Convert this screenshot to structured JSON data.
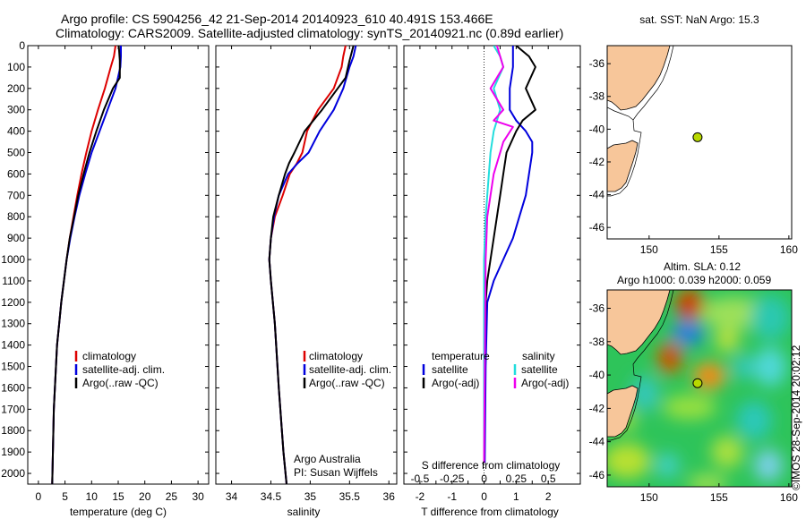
{
  "title": {
    "line1": "Argo profile: CS 5904256_42 21-Sep-2014 20140923_610 40.491S 153.466E",
    "line2": "Climatology: CARS2009. Satellite-adjusted climatology: synTS_20140921.nc (0.89d earlier)"
  },
  "colors": {
    "climatology": "#dd0000",
    "satellite": "#0000dd",
    "argo": "#000000",
    "sal_satellite": "#22dddd",
    "sal_argo": "#ee00ee",
    "land": "#f7c69a",
    "marker": "#b8d800"
  },
  "legend_left": {
    "climatology": "climatology",
    "satellite": "satellite-adj. clim.",
    "argo": "Argo(..raw -QC)"
  },
  "legend_diff": {
    "temperature": "temperature",
    "salinity": "salinity",
    "satellite": "satellite",
    "argo": "Argo(-adj)"
  },
  "credit": {
    "line1": "Argo Australia",
    "line2": "PI: Susan Wijffels"
  },
  "map_top": {
    "title": "sat. SST: NaN Argo: 15.3"
  },
  "map_bottom": {
    "title1": "Altim. SLA: 0.12",
    "title2": "Argo h1000: 0.039 h2000: 0.059"
  },
  "footer": "©IMOS 28-Sep-2014 20:02:12",
  "chart_data": [
    {
      "type": "line",
      "xlabel": "temperature (deg C)",
      "ylabel": "",
      "xlim": [
        -2,
        32
      ],
      "ylim": [
        2050,
        0
      ],
      "xticks": [
        0,
        5,
        10,
        15,
        20,
        25,
        30
      ],
      "yticks": [
        0,
        100,
        200,
        300,
        400,
        500,
        600,
        700,
        800,
        900,
        1000,
        1100,
        1200,
        1300,
        1400,
        1500,
        1600,
        1700,
        1800,
        1900,
        2000
      ],
      "series": [
        {
          "name": "climatology",
          "key": "climatology",
          "x": [
            14.5,
            14.2,
            13.6,
            12.5,
            11.2,
            10.0,
            9.0,
            8.1,
            7.3,
            6.6,
            5.9,
            5.3,
            4.8,
            4.3,
            3.9,
            3.5,
            3.2,
            2.9,
            2.6
          ],
          "y": [
            0,
            50,
            100,
            200,
            300,
            400,
            500,
            600,
            700,
            800,
            900,
            1000,
            1100,
            1200,
            1300,
            1400,
            1550,
            1700,
            2050
          ]
        },
        {
          "name": "satellite-adj. clim.",
          "key": "satellite",
          "x": [
            15.5,
            15.5,
            15.4,
            14.5,
            13.0,
            11.5,
            10.0,
            8.8,
            7.7,
            6.8,
            6.0,
            5.3,
            4.8,
            4.3,
            3.9,
            3.5,
            3.2,
            2.9,
            2.6
          ],
          "y": [
            0,
            50,
            100,
            200,
            300,
            400,
            500,
            600,
            700,
            800,
            900,
            1000,
            1100,
            1200,
            1300,
            1400,
            1550,
            1700,
            2050
          ]
        },
        {
          "name": "Argo(..raw -QC)",
          "key": "argo",
          "x": [
            15.1,
            15.3,
            15.3,
            14.0,
            12.3,
            10.9,
            9.6,
            8.5,
            7.5,
            6.7,
            5.9,
            5.3,
            4.8,
            4.3,
            3.9,
            3.5,
            3.2,
            2.9,
            2.6
          ],
          "y": [
            0,
            70,
            150,
            200,
            300,
            400,
            500,
            600,
            700,
            800,
            900,
            1000,
            1100,
            1200,
            1300,
            1400,
            1550,
            1700,
            2050
          ]
        }
      ]
    },
    {
      "type": "line",
      "xlabel": "salinity",
      "ylabel": "",
      "xlim": [
        33.8,
        36.1
      ],
      "ylim": [
        2050,
        0
      ],
      "xticks": [
        34,
        34.5,
        35,
        35.5,
        36
      ],
      "series": [
        {
          "name": "climatology",
          "key": "climatology",
          "x": [
            35.45,
            35.42,
            35.4,
            35.3,
            35.1,
            34.96,
            34.9,
            34.83,
            34.74,
            34.65,
            34.55,
            34.5,
            34.48,
            34.5,
            34.55,
            34.6,
            34.66,
            34.7
          ],
          "y": [
            0,
            50,
            100,
            200,
            300,
            400,
            500,
            550,
            600,
            700,
            800,
            900,
            1000,
            1100,
            1300,
            1600,
            1900,
            2050
          ]
        },
        {
          "name": "satellite-adj. clim.",
          "key": "satellite",
          "x": [
            35.58,
            35.55,
            35.5,
            35.42,
            35.3,
            35.12,
            34.98,
            34.84,
            34.72,
            34.6,
            34.54,
            34.5,
            34.48,
            34.5,
            34.55,
            34.6,
            34.66,
            34.7
          ],
          "y": [
            0,
            50,
            100,
            200,
            300,
            400,
            500,
            550,
            600,
            700,
            800,
            900,
            1000,
            1100,
            1300,
            1600,
            1900,
            2050
          ]
        },
        {
          "name": "Argo(..raw -QC)",
          "key": "argo",
          "x": [
            35.55,
            35.5,
            35.45,
            35.35,
            35.15,
            34.93,
            34.8,
            34.73,
            34.68,
            34.6,
            34.53,
            34.5,
            34.48,
            34.5,
            34.55,
            34.6,
            34.66,
            34.7
          ],
          "y": [
            0,
            70,
            150,
            200,
            300,
            400,
            500,
            550,
            600,
            700,
            800,
            900,
            1000,
            1100,
            1300,
            1600,
            1900,
            2050
          ]
        }
      ]
    },
    {
      "type": "line",
      "xlabel": "T difference from climatology",
      "x2label": "S difference from climatology",
      "xlim": [
        -2.5,
        3.0
      ],
      "ylim": [
        2050,
        0
      ],
      "xticks": [
        -2,
        -1.5,
        -1,
        -0.5,
        0,
        0.5,
        1,
        1.5,
        2
      ],
      "xticklabels": [
        "-2",
        "",
        "-1",
        "",
        "0",
        "",
        "1",
        "",
        "2"
      ],
      "x2ticks": [
        -0.5,
        -0.25,
        0,
        0.25,
        0.5
      ],
      "x2ticklabels": [
        "-0.5",
        "-0.25",
        "0",
        "0.25",
        "0.5"
      ],
      "series": [
        {
          "name": "temperature satellite",
          "key": "satellite",
          "x": [
            0.9,
            0.9,
            0.9,
            0.8,
            0.8,
            1.0,
            1.3,
            1.5,
            1.5,
            1.4,
            1.3,
            1.1,
            0.9,
            0.6,
            0.3,
            0.1,
            0.05,
            0.02
          ],
          "y": [
            0,
            50,
            100,
            200,
            300,
            350,
            400,
            450,
            500,
            600,
            700,
            800,
            900,
            1000,
            1100,
            1200,
            1500,
            1950
          ]
        },
        {
          "name": "temperature Argo(-adj)",
          "key": "argo",
          "x": [
            1.0,
            1.4,
            1.6,
            1.3,
            1.6,
            1.2,
            1.0,
            0.7,
            0.6,
            0.5,
            0.4,
            0.3,
            0.2,
            0.1,
            0.05,
            0.0,
            0.0
          ],
          "y": [
            0,
            50,
            100,
            200,
            300,
            350,
            400,
            500,
            600,
            700,
            800,
            900,
            1000,
            1100,
            1200,
            1500,
            1950
          ]
        },
        {
          "name": "salinity satellite",
          "key": "sal_satellite",
          "x": [
            0.3,
            0.5,
            0.6,
            0.3,
            0.5,
            0.3,
            0.2,
            0.15,
            0.1,
            0.05,
            0.0,
            0.0
          ],
          "y": [
            0,
            50,
            100,
            200,
            300,
            400,
            500,
            600,
            700,
            800,
            1000,
            1950
          ]
        },
        {
          "name": "salinity Argo(-adj)",
          "key": "sal_argo",
          "x": [
            0.4,
            0.6,
            0.2,
            0.6,
            0.3,
            0.9,
            0.6,
            0.5,
            0.3,
            0.1,
            0.05,
            0.0
          ],
          "y": [
            0,
            100,
            200,
            300,
            350,
            380,
            450,
            500,
            600,
            800,
            1000,
            1950
          ]
        }
      ]
    },
    {
      "type": "scatter",
      "title": "sat. SST: NaN Argo: 15.3",
      "xlim": [
        147,
        160.2
      ],
      "ylim": [
        -46.7,
        -34.9
      ],
      "xticks": [
        150,
        155,
        160
      ],
      "yticks": [
        -36,
        -38,
        -40,
        -42,
        -44,
        -46
      ],
      "points": [
        {
          "x": 153.466,
          "y": -40.491
        }
      ]
    },
    {
      "type": "heatmap",
      "title": "Altim. SLA: 0.12",
      "subtitle": "Argo h1000: 0.039 h2000: 0.059",
      "xlim": [
        147,
        160.2
      ],
      "ylim": [
        -46.7,
        -34.9
      ],
      "xticks": [
        150,
        155,
        160
      ],
      "yticks": [
        -36,
        -38,
        -40,
        -42,
        -44,
        -46
      ],
      "points": [
        {
          "x": 153.466,
          "y": -40.491
        }
      ]
    }
  ]
}
